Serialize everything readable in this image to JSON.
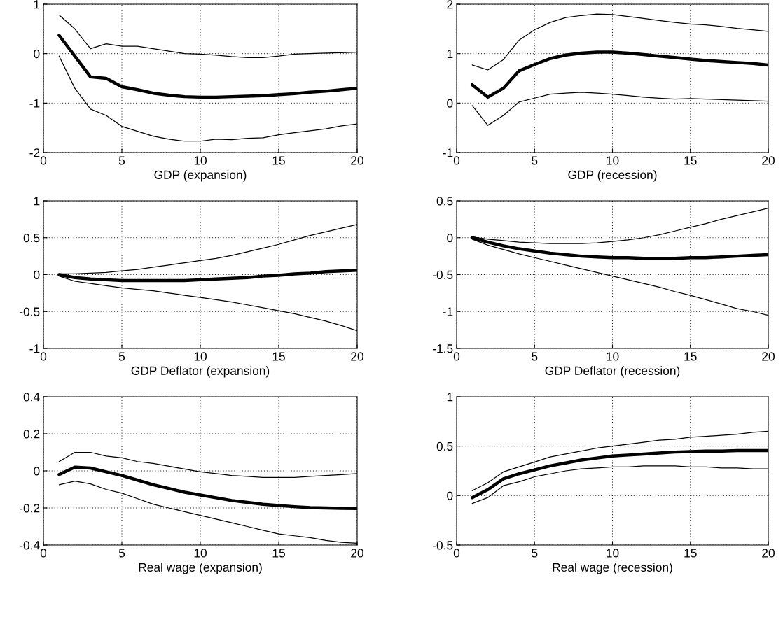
{
  "chart_data": [
    {
      "type": "line",
      "xlabel": "GDP (expansion)",
      "x": [
        1,
        2,
        3,
        4,
        5,
        6,
        7,
        8,
        9,
        10,
        11,
        12,
        13,
        14,
        15,
        16,
        17,
        18,
        19,
        20
      ],
      "xlim": [
        0,
        20
      ],
      "xticks": [
        0,
        5,
        10,
        15,
        20
      ],
      "ylim": [
        -2,
        1
      ],
      "yticks": [
        -2,
        -1,
        0,
        1
      ],
      "grid": true,
      "series": [
        {
          "color": "#000000",
          "values": [
            0.37,
            -0.05,
            -0.47,
            -0.5,
            -0.67,
            -0.73,
            -0.8,
            -0.84,
            -0.87,
            -0.88,
            -0.88,
            -0.87,
            -0.86,
            -0.85,
            -0.83,
            -0.81,
            -0.78,
            -0.76,
            -0.73,
            -0.7
          ]
        },
        {
          "color": "#000000",
          "values": [
            0.78,
            0.5,
            0.1,
            0.2,
            0.15,
            0.15,
            0.1,
            0.05,
            0.0,
            -0.01,
            -0.03,
            -0.06,
            -0.08,
            -0.08,
            -0.05,
            -0.01,
            0.0,
            0.01,
            0.02,
            0.03
          ]
        },
        {
          "color": "#000000",
          "values": [
            -0.05,
            -0.7,
            -1.12,
            -1.25,
            -1.47,
            -1.57,
            -1.67,
            -1.73,
            -1.77,
            -1.77,
            -1.73,
            -1.74,
            -1.71,
            -1.7,
            -1.64,
            -1.6,
            -1.56,
            -1.52,
            -1.46,
            -1.42
          ]
        }
      ]
    },
    {
      "type": "line",
      "xlabel": "GDP (recession)",
      "x": [
        1,
        2,
        3,
        4,
        5,
        6,
        7,
        8,
        9,
        10,
        11,
        12,
        13,
        14,
        15,
        16,
        17,
        18,
        19,
        20
      ],
      "xlim": [
        0,
        20
      ],
      "xticks": [
        0,
        5,
        10,
        15,
        20
      ],
      "ylim": [
        -1,
        2
      ],
      "yticks": [
        -1,
        0,
        1,
        2
      ],
      "grid": true,
      "series": [
        {
          "color": "#000000",
          "values": [
            0.37,
            0.12,
            0.3,
            0.65,
            0.78,
            0.9,
            0.97,
            1.01,
            1.03,
            1.03,
            1.01,
            0.98,
            0.95,
            0.92,
            0.89,
            0.86,
            0.84,
            0.82,
            0.8,
            0.77
          ]
        },
        {
          "color": "#000000",
          "values": [
            0.77,
            0.67,
            0.88,
            1.27,
            1.48,
            1.63,
            1.73,
            1.77,
            1.8,
            1.79,
            1.75,
            1.71,
            1.67,
            1.63,
            1.6,
            1.58,
            1.55,
            1.51,
            1.48,
            1.45
          ]
        },
        {
          "color": "#000000",
          "values": [
            -0.05,
            -0.45,
            -0.25,
            0.02,
            0.1,
            0.18,
            0.2,
            0.22,
            0.2,
            0.18,
            0.15,
            0.12,
            0.1,
            0.08,
            0.09,
            0.08,
            0.07,
            0.06,
            0.05,
            0.04
          ]
        }
      ]
    },
    {
      "type": "line",
      "xlabel": "GDP Deflator (expansion)",
      "x": [
        1,
        2,
        3,
        4,
        5,
        6,
        7,
        8,
        9,
        10,
        11,
        12,
        13,
        14,
        15,
        16,
        17,
        18,
        19,
        20
      ],
      "xlim": [
        0,
        20
      ],
      "xticks": [
        0,
        5,
        10,
        15,
        20
      ],
      "ylim": [
        -1,
        1
      ],
      "yticks": [
        -1,
        -0.5,
        0,
        0.5,
        1
      ],
      "grid": true,
      "series": [
        {
          "color": "#000000",
          "values": [
            0,
            -0.04,
            -0.06,
            -0.07,
            -0.08,
            -0.08,
            -0.08,
            -0.08,
            -0.08,
            -0.07,
            -0.06,
            -0.05,
            -0.04,
            -0.02,
            -0.01,
            0.01,
            0.02,
            0.04,
            0.05,
            0.06
          ]
        },
        {
          "color": "#000000",
          "values": [
            0.01,
            0.01,
            0.02,
            0.03,
            0.05,
            0.07,
            0.1,
            0.13,
            0.16,
            0.19,
            0.22,
            0.26,
            0.31,
            0.36,
            0.41,
            0.47,
            0.53,
            0.58,
            0.63,
            0.68
          ]
        },
        {
          "color": "#000000",
          "values": [
            -0.02,
            -0.09,
            -0.12,
            -0.15,
            -0.18,
            -0.2,
            -0.22,
            -0.25,
            -0.28,
            -0.31,
            -0.34,
            -0.37,
            -0.41,
            -0.45,
            -0.49,
            -0.53,
            -0.58,
            -0.63,
            -0.69,
            -0.76
          ]
        }
      ]
    },
    {
      "type": "line",
      "xlabel": "GDP Deflator (recession)",
      "x": [
        1,
        2,
        3,
        4,
        5,
        6,
        7,
        8,
        9,
        10,
        11,
        12,
        13,
        14,
        15,
        16,
        17,
        18,
        19,
        20
      ],
      "xlim": [
        0,
        20
      ],
      "xticks": [
        0,
        5,
        10,
        15,
        20
      ],
      "ylim": [
        -1.5,
        0.5
      ],
      "yticks": [
        -1.5,
        -1,
        -0.5,
        0,
        0.5
      ],
      "grid": true,
      "series": [
        {
          "color": "#000000",
          "values": [
            0,
            -0.06,
            -0.11,
            -0.15,
            -0.18,
            -0.21,
            -0.23,
            -0.25,
            -0.26,
            -0.27,
            -0.27,
            -0.28,
            -0.28,
            -0.28,
            -0.27,
            -0.27,
            -0.26,
            -0.25,
            -0.24,
            -0.23
          ]
        },
        {
          "color": "#000000",
          "values": [
            0.01,
            -0.02,
            -0.04,
            -0.06,
            -0.07,
            -0.08,
            -0.08,
            -0.08,
            -0.07,
            -0.05,
            -0.03,
            0,
            0.04,
            0.09,
            0.14,
            0.19,
            0.25,
            0.3,
            0.35,
            0.4
          ]
        },
        {
          "color": "#000000",
          "values": [
            -0.02,
            -0.1,
            -0.16,
            -0.22,
            -0.27,
            -0.32,
            -0.37,
            -0.42,
            -0.47,
            -0.52,
            -0.57,
            -0.62,
            -0.67,
            -0.73,
            -0.78,
            -0.84,
            -0.9,
            -0.96,
            -1.0,
            -1.05
          ]
        }
      ]
    },
    {
      "type": "line",
      "xlabel": "Real wage (expansion)",
      "x": [
        1,
        2,
        3,
        4,
        5,
        6,
        7,
        8,
        9,
        10,
        11,
        12,
        13,
        14,
        15,
        16,
        17,
        18,
        19,
        20
      ],
      "xlim": [
        0,
        20
      ],
      "xticks": [
        0,
        5,
        10,
        15,
        20
      ],
      "ylim": [
        -0.4,
        0.4
      ],
      "yticks": [
        -0.4,
        -0.2,
        0,
        0.2,
        0.4
      ],
      "grid": true,
      "series": [
        {
          "color": "#000000",
          "values": [
            -0.02,
            0.02,
            0.015,
            -0.005,
            -0.025,
            -0.05,
            -0.075,
            -0.095,
            -0.115,
            -0.13,
            -0.145,
            -0.16,
            -0.17,
            -0.18,
            -0.187,
            -0.193,
            -0.198,
            -0.2,
            -0.202,
            -0.203
          ]
        },
        {
          "color": "#000000",
          "values": [
            0.05,
            0.1,
            0.1,
            0.08,
            0.07,
            0.05,
            0.04,
            0.025,
            0.01,
            -0.005,
            -0.015,
            -0.025,
            -0.03,
            -0.035,
            -0.035,
            -0.035,
            -0.03,
            -0.025,
            -0.02,
            -0.015
          ]
        },
        {
          "color": "#000000",
          "values": [
            -0.075,
            -0.055,
            -0.07,
            -0.1,
            -0.12,
            -0.15,
            -0.18,
            -0.2,
            -0.22,
            -0.24,
            -0.26,
            -0.28,
            -0.3,
            -0.32,
            -0.34,
            -0.35,
            -0.36,
            -0.375,
            -0.385,
            -0.39
          ]
        }
      ]
    },
    {
      "type": "line",
      "xlabel": "Real wage (recession)",
      "x": [
        1,
        2,
        3,
        4,
        5,
        6,
        7,
        8,
        9,
        10,
        11,
        12,
        13,
        14,
        15,
        16,
        17,
        18,
        19,
        20
      ],
      "xlim": [
        0,
        20
      ],
      "xticks": [
        0,
        5,
        10,
        15,
        20
      ],
      "ylim": [
        -0.5,
        1
      ],
      "yticks": [
        -0.5,
        0,
        0.5,
        1
      ],
      "grid": true,
      "series": [
        {
          "color": "#000000",
          "values": [
            -0.02,
            0.06,
            0.17,
            0.22,
            0.26,
            0.3,
            0.33,
            0.36,
            0.38,
            0.4,
            0.41,
            0.42,
            0.43,
            0.44,
            0.445,
            0.45,
            0.45,
            0.455,
            0.455,
            0.455
          ]
        },
        {
          "color": "#000000",
          "values": [
            0.05,
            0.13,
            0.24,
            0.29,
            0.34,
            0.39,
            0.42,
            0.45,
            0.48,
            0.5,
            0.52,
            0.54,
            0.56,
            0.57,
            0.59,
            0.6,
            0.61,
            0.62,
            0.64,
            0.65
          ]
        },
        {
          "color": "#000000",
          "values": [
            -0.08,
            -0.02,
            0.1,
            0.14,
            0.19,
            0.22,
            0.25,
            0.27,
            0.28,
            0.29,
            0.29,
            0.3,
            0.3,
            0.3,
            0.29,
            0.29,
            0.28,
            0.28,
            0.27,
            0.27
          ]
        }
      ]
    }
  ]
}
